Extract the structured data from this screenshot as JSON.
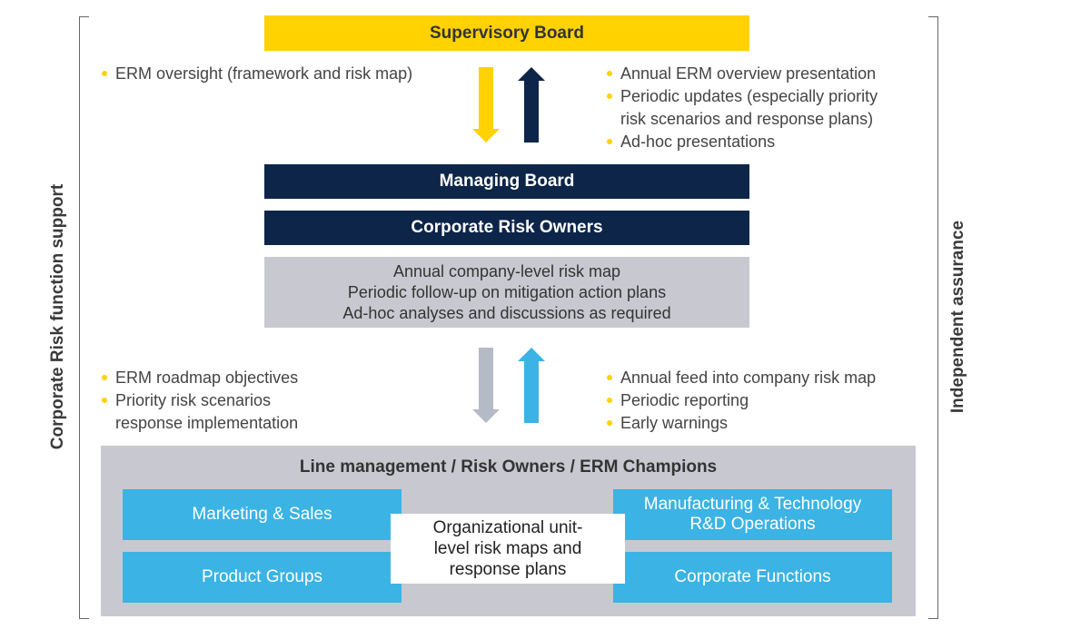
{
  "side_labels": {
    "left": "Corporate Risk function support",
    "right": "Independent assurance"
  },
  "supervisory_board": {
    "label": "Supervisory Board",
    "color": "#FFD200"
  },
  "top_left_bullets": [
    "ERM oversight (framework and risk map)"
  ],
  "top_right_bullets": [
    {
      "line1": "Annual ERM overview presentation"
    },
    {
      "line1": "Periodic updates (especially priority",
      "line2": "risk scenarios and response plans)"
    },
    {
      "line1": "Ad-hoc presentations"
    }
  ],
  "managing_board": {
    "label": "Managing Board",
    "color": "#0C2548"
  },
  "corporate_risk_owners": {
    "label": "Corporate Risk Owners"
  },
  "company_level_box": {
    "lines": [
      "Annual company-level risk map",
      "Periodic follow-up on mitigation action plans",
      "Ad-hoc analyses and discussions as required"
    ],
    "color": "#C8C9D0"
  },
  "mid_left_bullets": [
    {
      "line1": "ERM roadmap objectives"
    },
    {
      "line1": "Priority risk scenarios",
      "line2": "response implementation"
    }
  ],
  "mid_right_bullets": [
    {
      "line1": "Annual feed into company risk map"
    },
    {
      "line1": "Periodic reporting"
    },
    {
      "line1": "Early warnings"
    }
  ],
  "line_management": {
    "title": "Line management / Risk Owners / ERM Champions",
    "units": [
      "Marketing & Sales",
      "Manufacturing & Technology R&D Operations",
      "Product Groups",
      "Corporate Functions"
    ],
    "center_note": "Organizational unit-level risk maps and response plans",
    "unit_color": "#3BB3E4"
  },
  "arrow_colors": {
    "yellow": "#FFD200",
    "navy": "#0C2548",
    "grey": "#B4BAC6",
    "light_blue": "#3BB3E4"
  }
}
